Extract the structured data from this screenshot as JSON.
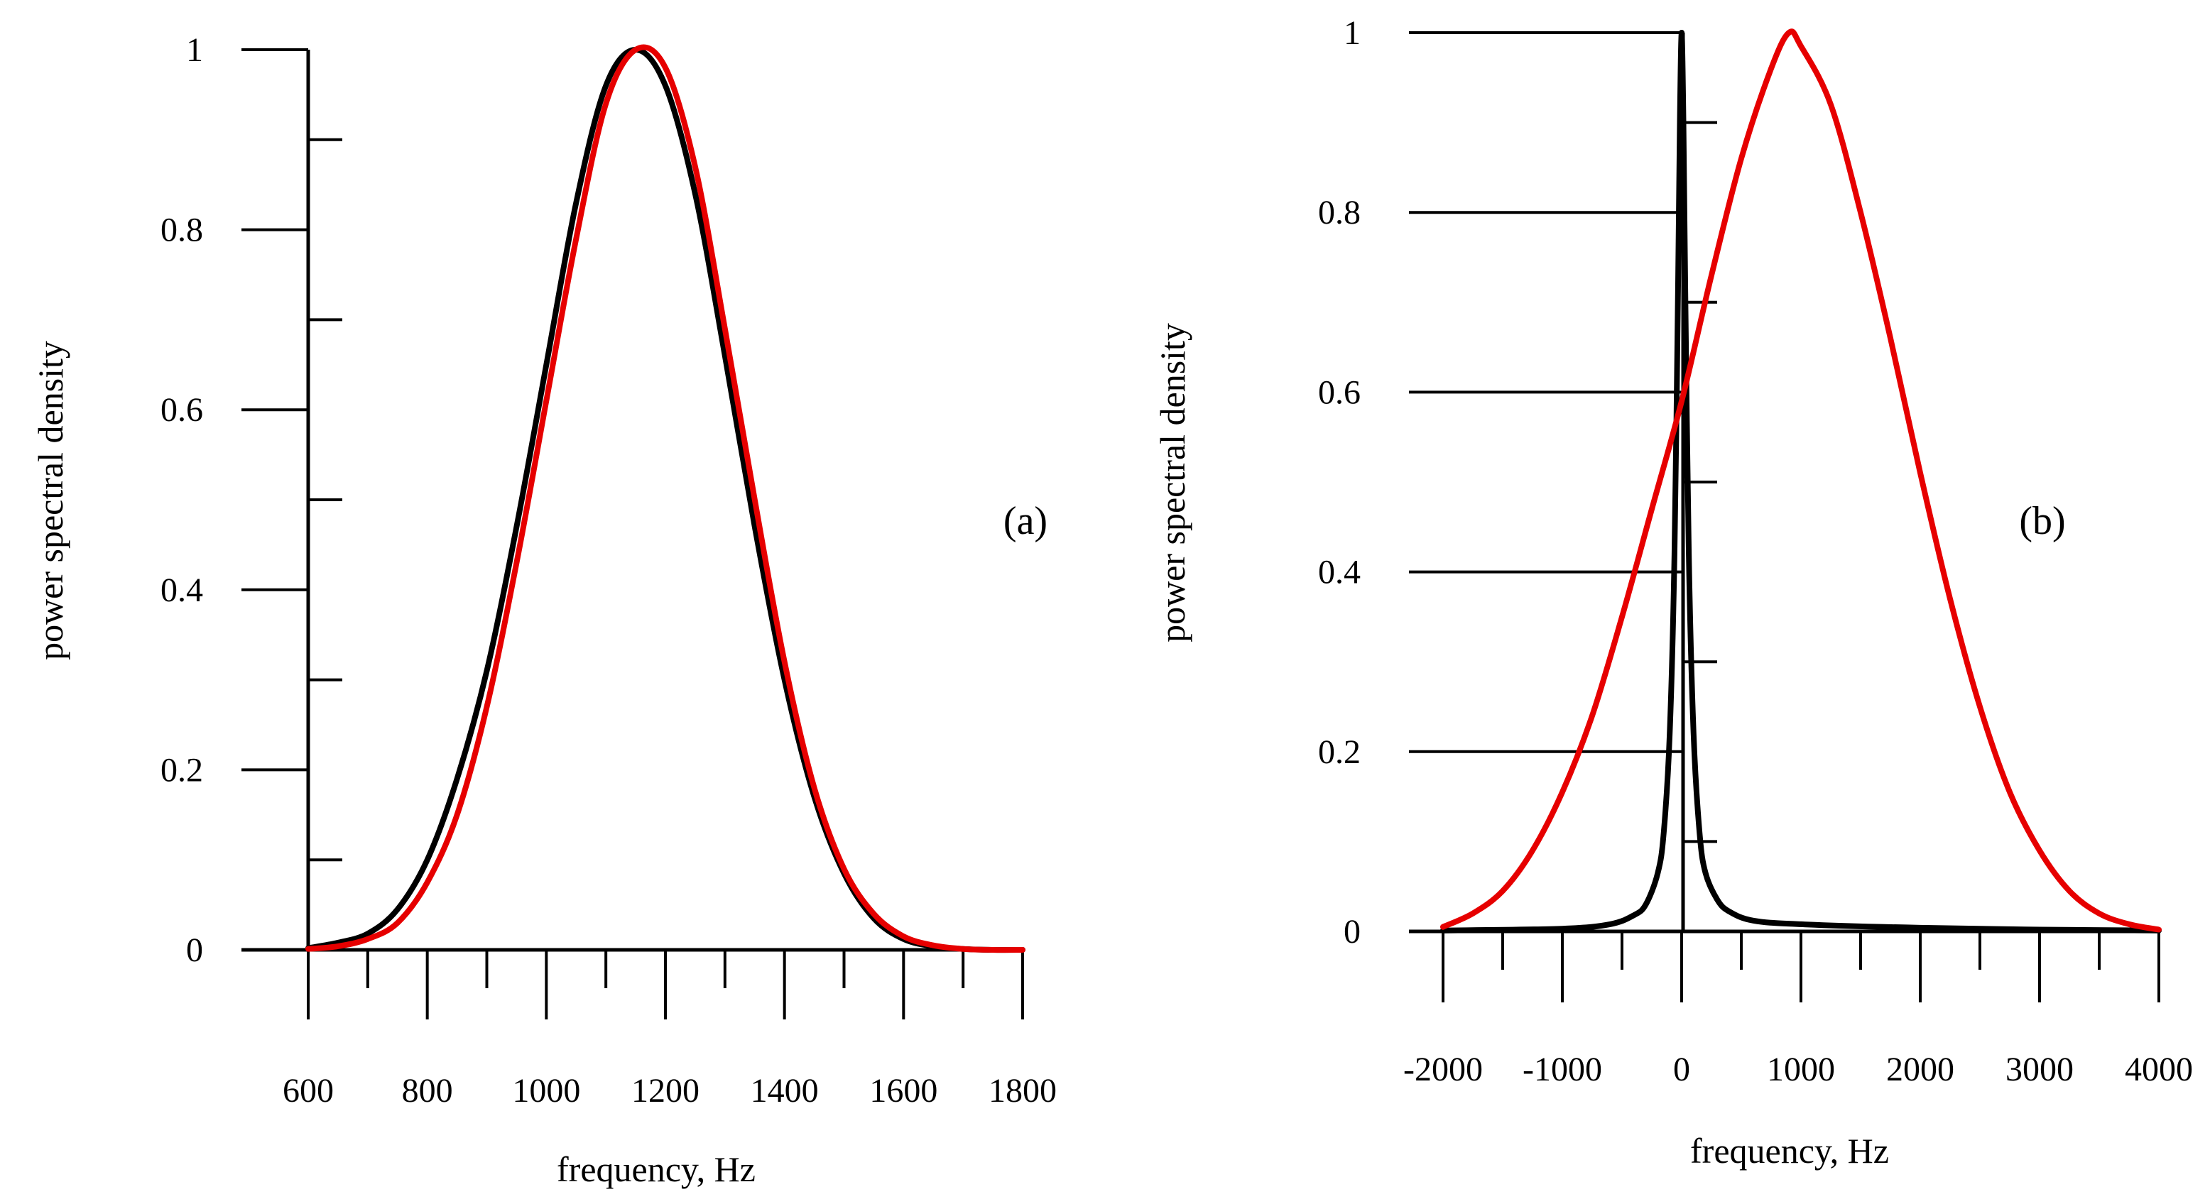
{
  "chart_data": [
    {
      "type": "line",
      "panel_label": "(a)",
      "xlabel": "frequency, Hz",
      "ylabel": "power spectral density",
      "xlim": [
        600,
        1800
      ],
      "ylim": [
        0,
        1
      ],
      "x_ticks": [
        600,
        800,
        1000,
        1200,
        1400,
        1600,
        1800
      ],
      "x_tick_labels": [
        "600",
        "800",
        "1000",
        "1200",
        "1400",
        "1600",
        "1800"
      ],
      "x_minor_step": 100,
      "y_ticks": [
        0,
        0.2,
        0.4,
        0.6,
        0.8,
        1
      ],
      "y_tick_labels": [
        "0",
        "0.2",
        "0.4",
        "0.6",
        "0.8",
        "1"
      ],
      "y_minor_step": 0.1,
      "grid": false,
      "series": [
        {
          "name": "black",
          "color": "#000000",
          "x": [
            600,
            650,
            700,
            750,
            800,
            850,
            900,
            950,
            1000,
            1050,
            1100,
            1150,
            1200,
            1250,
            1300,
            1350,
            1400,
            1450,
            1500,
            1550,
            1600,
            1650,
            1700,
            1750,
            1800
          ],
          "y": [
            0.002,
            0.008,
            0.018,
            0.045,
            0.1,
            0.19,
            0.31,
            0.47,
            0.65,
            0.83,
            0.96,
            1.0,
            0.96,
            0.84,
            0.66,
            0.47,
            0.3,
            0.17,
            0.085,
            0.035,
            0.012,
            0.004,
            0.001,
            0.0,
            0.0
          ]
        },
        {
          "name": "red",
          "color": "#e60000",
          "x": [
            600,
            650,
            700,
            750,
            800,
            850,
            900,
            950,
            1000,
            1050,
            1100,
            1150,
            1200,
            1250,
            1300,
            1350,
            1400,
            1450,
            1500,
            1550,
            1600,
            1650,
            1700,
            1750,
            1800
          ],
          "y": [
            0.001,
            0.004,
            0.012,
            0.03,
            0.075,
            0.15,
            0.27,
            0.43,
            0.61,
            0.79,
            0.94,
            1.0,
            0.98,
            0.87,
            0.69,
            0.5,
            0.32,
            0.18,
            0.09,
            0.04,
            0.015,
            0.005,
            0.001,
            0.0,
            0.0
          ]
        }
      ]
    },
    {
      "type": "line",
      "panel_label": "(b)",
      "xlabel": "frequency, Hz",
      "ylabel": "power spectral density",
      "xlim": [
        -2000,
        4000
      ],
      "ylim": [
        0,
        1
      ],
      "x_ticks": [
        -2000,
        -1000,
        0,
        1000,
        2000,
        3000,
        4000
      ],
      "x_tick_labels": [
        "-2000",
        "-1000",
        "0",
        "1000",
        "2000",
        "3000",
        "4000"
      ],
      "x_minor_step": 500,
      "y_ticks": [
        0,
        0.2,
        0.4,
        0.6,
        0.8,
        1
      ],
      "y_tick_labels": [
        "0",
        "0.2",
        "0.4",
        "0.6",
        "0.8",
        "1"
      ],
      "y_minor_step": 0.1,
      "grid": false,
      "series": [
        {
          "name": "black",
          "color": "#000000",
          "x": [
            -2000,
            -1000,
            -600,
            -400,
            -300,
            -200,
            -150,
            -100,
            -60,
            -30,
            -15,
            0,
            15,
            30,
            60,
            100,
            150,
            200,
            300,
            400,
            600,
            1000,
            2000,
            3000,
            4000
          ],
          "y": [
            0.001,
            0.003,
            0.008,
            0.018,
            0.03,
            0.065,
            0.11,
            0.22,
            0.42,
            0.72,
            0.9,
            1.0,
            0.9,
            0.72,
            0.42,
            0.22,
            0.11,
            0.065,
            0.035,
            0.022,
            0.012,
            0.008,
            0.004,
            0.002,
            0.001
          ]
        },
        {
          "name": "red",
          "color": "#e60000",
          "x": [
            -2000,
            -1750,
            -1500,
            -1250,
            -1000,
            -750,
            -500,
            -250,
            0,
            250,
            500,
            750,
            900,
            1000,
            1250,
            1500,
            1750,
            2000,
            2250,
            2500,
            2750,
            3000,
            3250,
            3500,
            3750,
            4000
          ],
          "y": [
            0.005,
            0.02,
            0.045,
            0.09,
            0.155,
            0.24,
            0.35,
            0.47,
            0.59,
            0.73,
            0.86,
            0.96,
            1.0,
            0.985,
            0.92,
            0.8,
            0.66,
            0.51,
            0.37,
            0.25,
            0.155,
            0.09,
            0.045,
            0.02,
            0.008,
            0.002
          ]
        }
      ]
    }
  ]
}
